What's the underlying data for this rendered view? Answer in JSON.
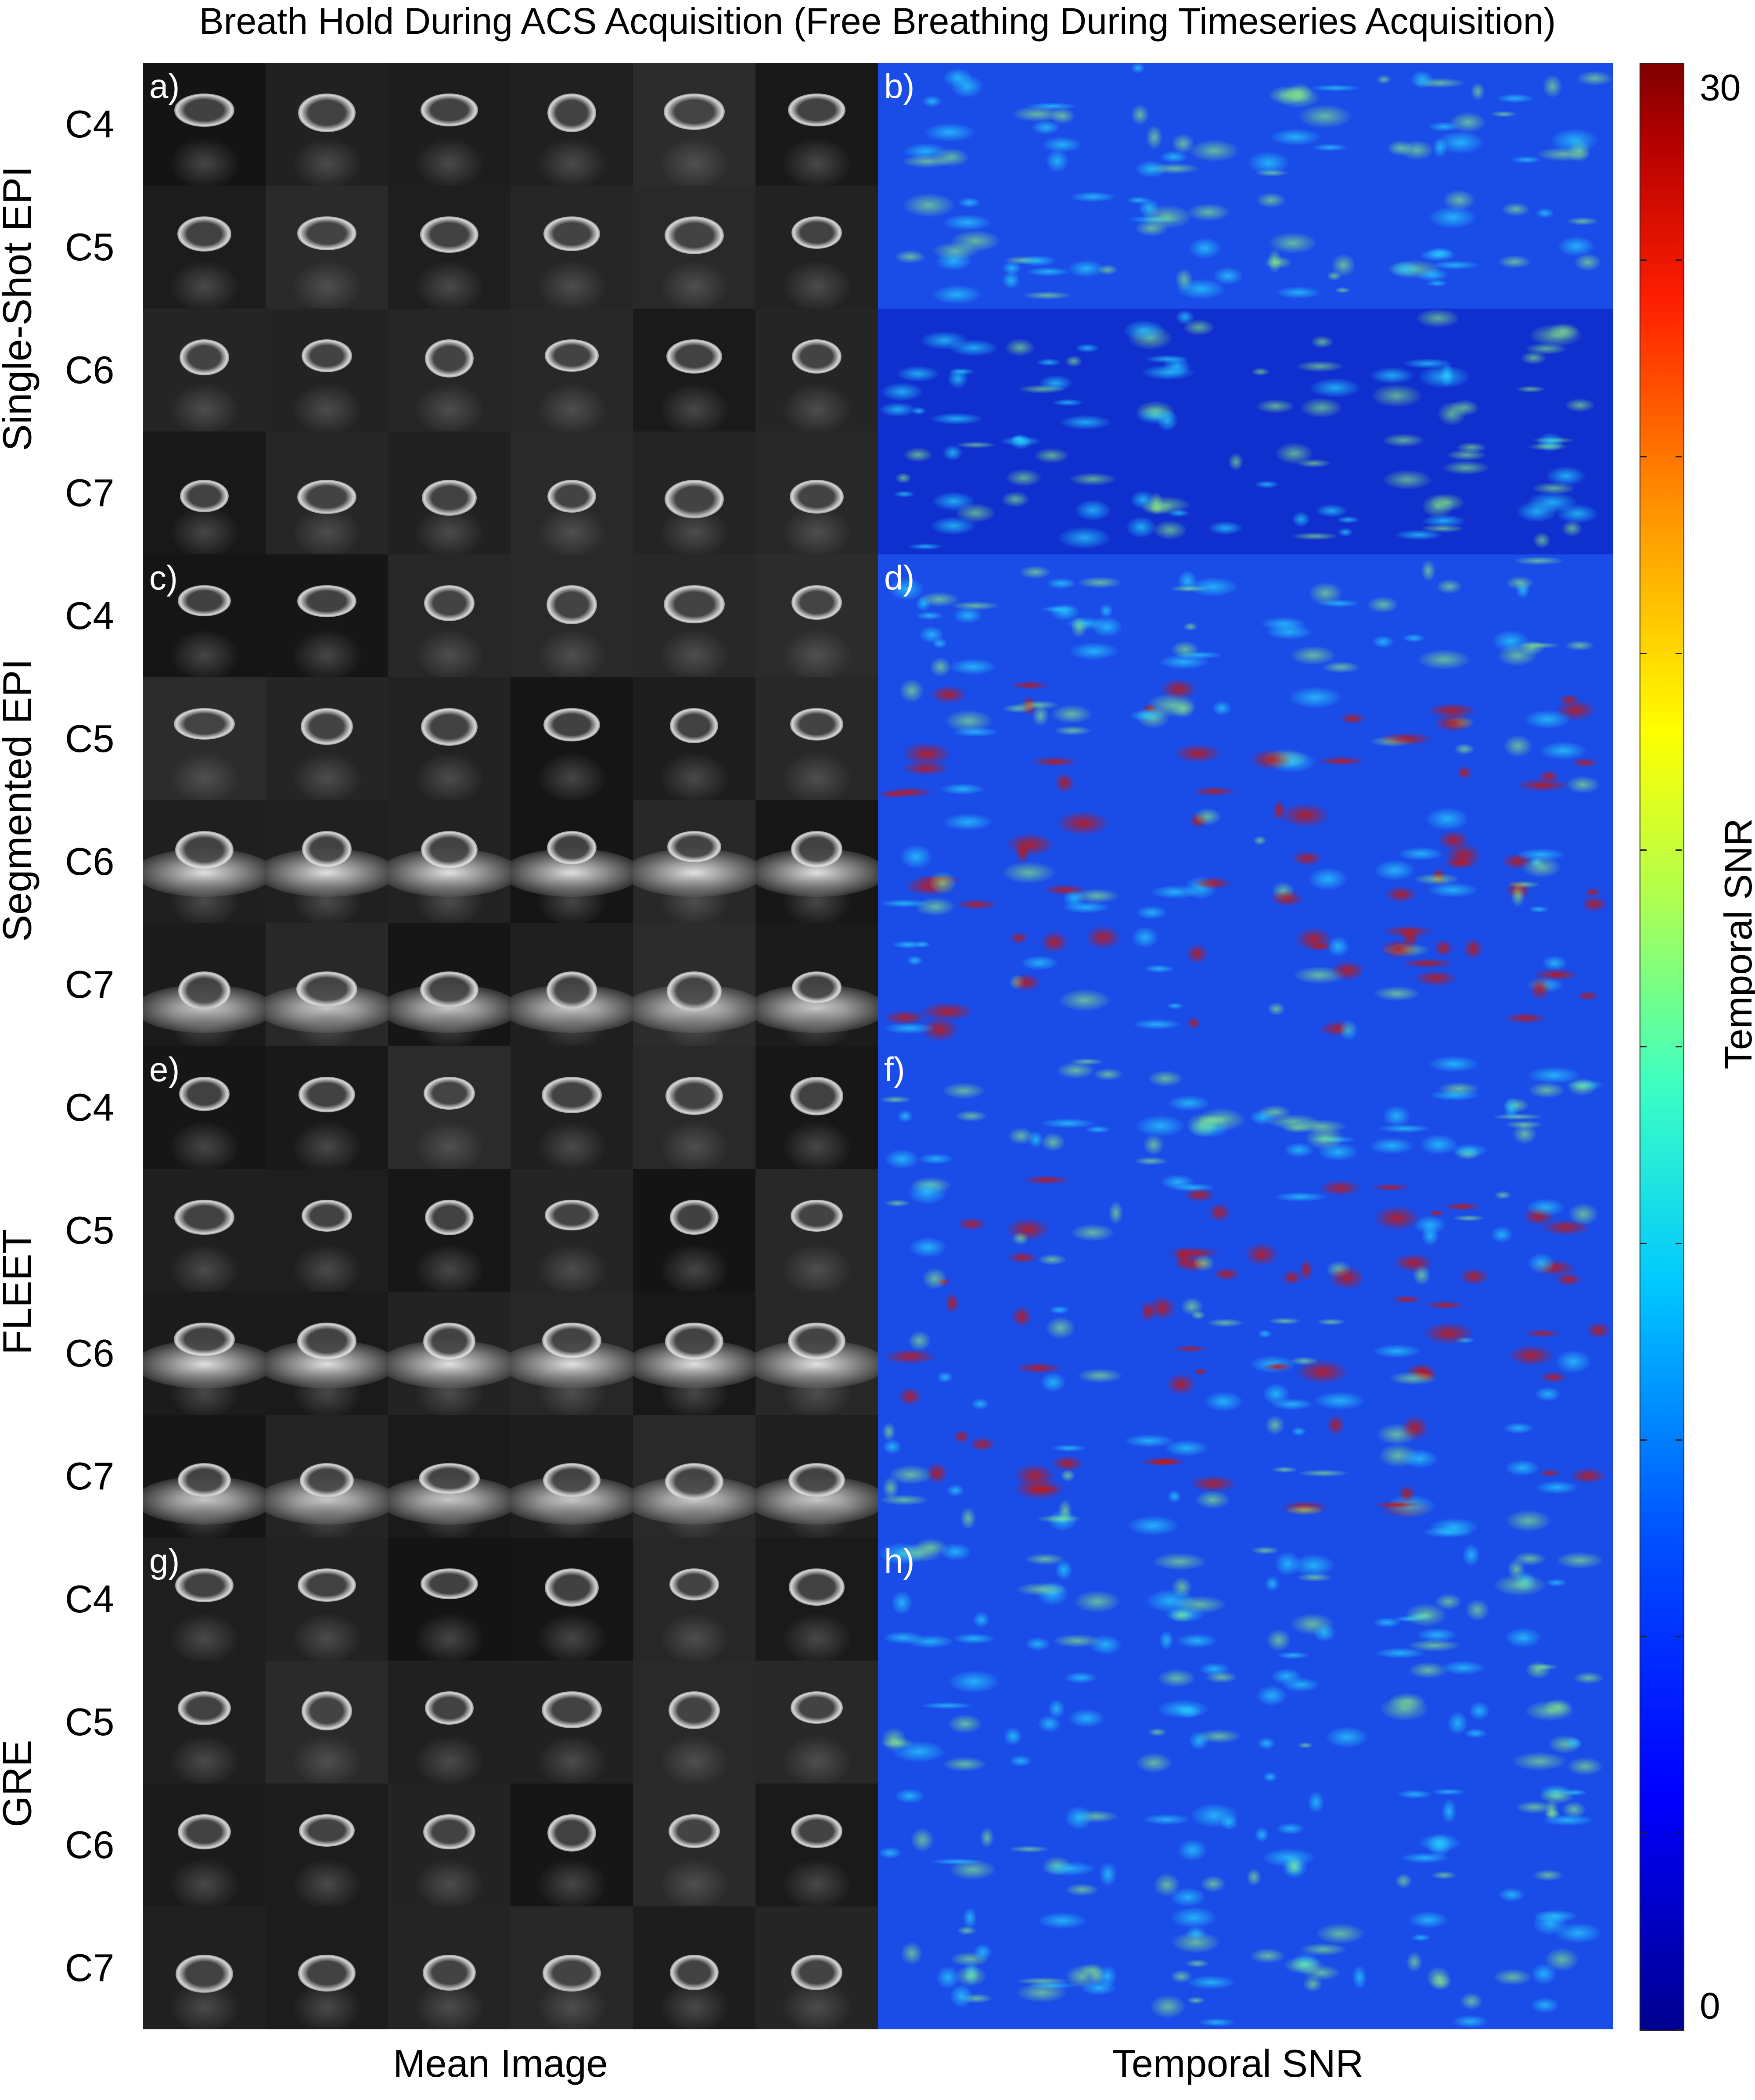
{
  "title": "Breath Hold During ACS Acquisition (Free Breathing During Timeseries Acquisition)",
  "row_groups": [
    {
      "label": "Single-Shot EPI",
      "mean_panel": "a)",
      "tsnr_panel": "b)"
    },
    {
      "label": "Segmented EPI",
      "mean_panel": "c)",
      "tsnr_panel": "d)"
    },
    {
      "label": "FLEET",
      "mean_panel": "e)",
      "tsnr_panel": "f)"
    },
    {
      "label": "GRE",
      "mean_panel": "g)",
      "tsnr_panel": "h)"
    }
  ],
  "levels": [
    "C4",
    "C5",
    "C6",
    "C7"
  ],
  "columns_per_panel": 6,
  "x_labels": {
    "mean": "Mean Image",
    "tsnr": "Temporal SNR"
  },
  "colorbar": {
    "label": "Temporal SNR",
    "min_label": "0",
    "max_label": "30",
    "min": 0,
    "max": 30,
    "colormap": "jet"
  },
  "colors": {
    "tsnr_background": "#1648e6",
    "mean_background": "#1c1c1c"
  }
}
